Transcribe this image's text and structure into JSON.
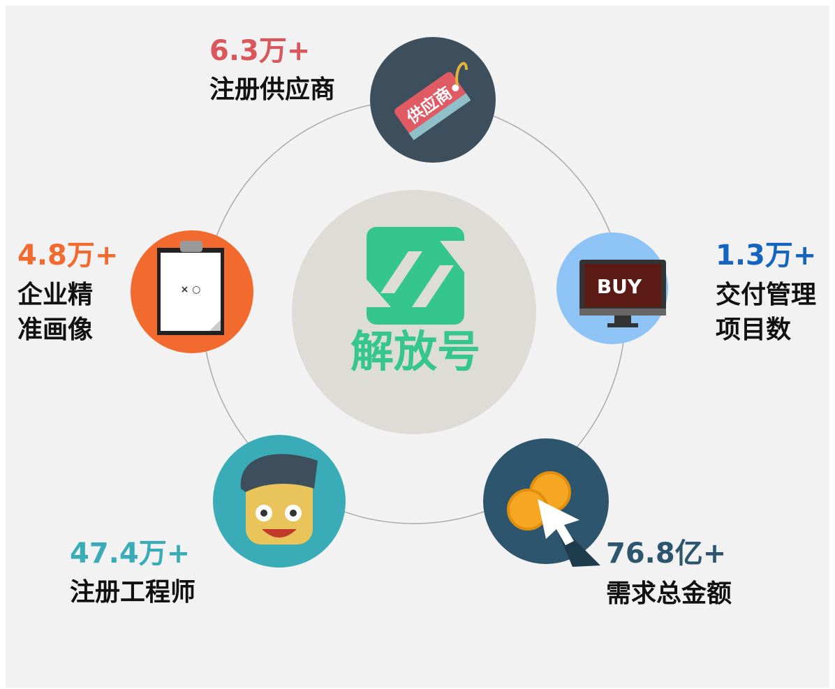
{
  "logo": "解放号",
  "stats": [
    {
      "value": "6.3万+",
      "label": [
        "注册供应商"
      ]
    },
    {
      "value": "4.8万+",
      "label": [
        "企业精",
        "准画像"
      ]
    },
    {
      "value": "1.3万+",
      "label": [
        "交付管理",
        "项目数"
      ]
    },
    {
      "value": "47.4万+",
      "label": [
        "注册工程师"
      ]
    },
    {
      "value": "76.8亿+",
      "label": [
        "需求总金额"
      ]
    }
  ],
  "icons": {
    "tag": "供应商",
    "screen": "BUY"
  }
}
